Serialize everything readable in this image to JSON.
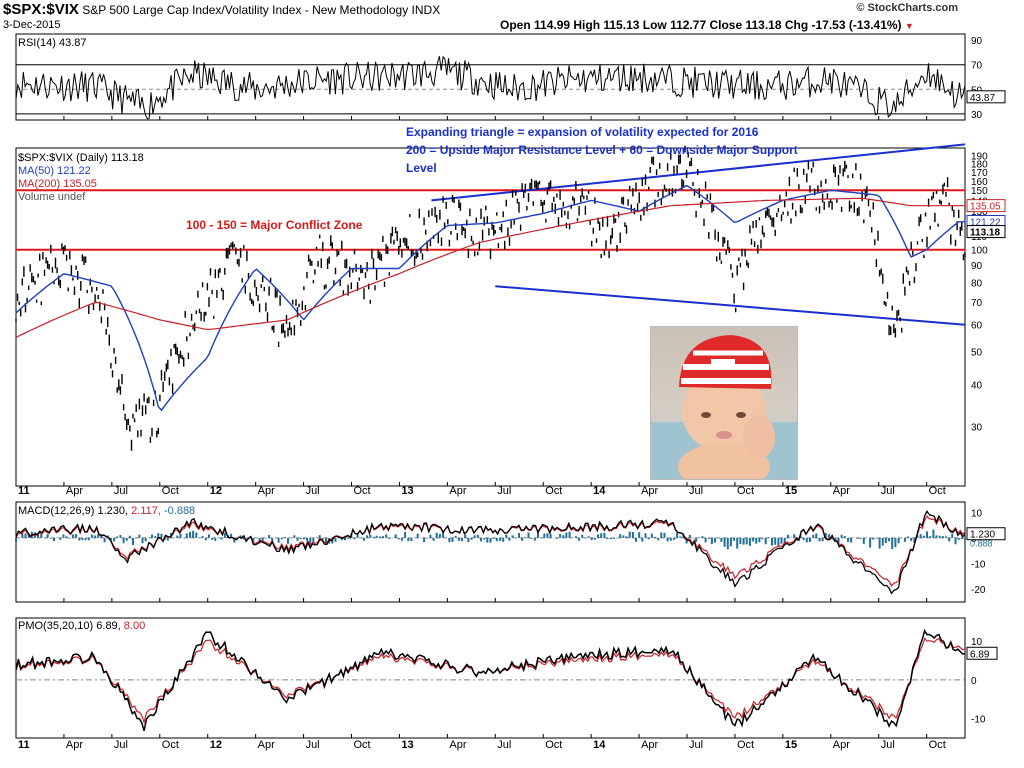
{
  "header": {
    "symbol": "$SPX:$VIX",
    "description": "S&P 500 Large Cap Index/Volatility Index - New Methodology",
    "exchange": "INDX",
    "date": "3-Dec-2015",
    "ohlc": "Open 114.99  High 115.13  Low 112.77  Close 113.18  Chg -17.53 (-13.41%)",
    "down_marker": "▼",
    "watermark": "© StockCharts.com"
  },
  "colors": {
    "price": "#000000",
    "ma50": "#1f3fbf",
    "ma200": "#c8202a",
    "support_lines": "#e0161b",
    "trend_lines": "#1a2fcf",
    "annotation_blue": "#1a2fcf",
    "annotation_red": "#d41a1a",
    "histogram": "#1f6f99"
  },
  "chart_data": [
    {
      "type": "line",
      "panel": "rsi",
      "legend": "RSI(14) 43.87",
      "value_label": "43.87",
      "yticks": [
        30,
        50,
        70,
        90
      ],
      "ylim": [
        25,
        95
      ],
      "reference_lines": [
        30,
        70
      ],
      "series": [
        {
          "name": "RSI(14)",
          "x": [
            "2011",
            "2011-06",
            "2011-09",
            "2011-12",
            "2012-04",
            "2012-08",
            "2012-12",
            "2013-04",
            "2013-08",
            "2013-12",
            "2014-04",
            "2014-08",
            "2014-12",
            "2015-04",
            "2015-08",
            "2015-10",
            "2015-12"
          ],
          "y": [
            55,
            52,
            35,
            62,
            50,
            58,
            60,
            65,
            50,
            58,
            60,
            55,
            52,
            58,
            35,
            65,
            44
          ]
        }
      ]
    },
    {
      "type": "line",
      "panel": "price",
      "scale": "log",
      "legend": [
        "$SPX:$VIX (Daily) 113.18",
        "MA(50) 121.22",
        "MA(200) 135.05",
        "Volume undef"
      ],
      "value_labels": {
        "price": "113.18",
        "ma50": "121.22",
        "ma200": "135.05"
      },
      "yticks": [
        30,
        40,
        50,
        60,
        70,
        80,
        90,
        100,
        110,
        120,
        130,
        140,
        150,
        160,
        170,
        180,
        190
      ],
      "ylim": [
        20,
        200
      ],
      "xticks": [
        "11",
        "Apr",
        "Jul",
        "Oct",
        "12",
        "Apr",
        "Jul",
        "Oct",
        "13",
        "Apr",
        "Jul",
        "Oct",
        "14",
        "Apr",
        "Jul",
        "Oct",
        "15",
        "Apr",
        "Jul",
        "Oct"
      ],
      "horizontal_lines": [
        100,
        150
      ],
      "trend_lines": [
        {
          "from": [
            "2013-03",
            140
          ],
          "to": [
            "2015-12",
            205
          ]
        },
        {
          "from": [
            "2013-07",
            78
          ],
          "to": [
            "2015-12",
            60
          ]
        }
      ],
      "annotations": [
        "Expanding triangle = expansion of volatility expected for 2016",
        "200 = Upside Major Resistance Level + 60 = Downside Major Support",
        "Level",
        "100 - 150 = Major Conflict Zone"
      ],
      "series": [
        {
          "name": "$SPX:$VIX",
          "x": [
            "2011-01",
            "2011-04",
            "2011-06",
            "2011-08",
            "2011-10",
            "2011-12",
            "2012-03",
            "2012-06",
            "2012-08",
            "2012-11",
            "2013-01",
            "2013-04",
            "2013-06",
            "2013-09",
            "2013-12",
            "2014-02",
            "2014-05",
            "2014-07",
            "2014-10",
            "2014-12",
            "2015-03",
            "2015-06",
            "2015-08",
            "2015-09",
            "2015-11",
            "2015-12"
          ],
          "y": [
            75,
            90,
            75,
            28,
            35,
            60,
            95,
            55,
            95,
            80,
            105,
            125,
            110,
            135,
            140,
            110,
            160,
            170,
            75,
            130,
            160,
            150,
            50,
            90,
            145,
            113
          ]
        },
        {
          "name": "MA(50)",
          "x": [
            "2011-01",
            "2011-04",
            "2011-07",
            "2011-10",
            "2012-01",
            "2012-04",
            "2012-07",
            "2012-10",
            "2013-01",
            "2013-04",
            "2013-07",
            "2013-10",
            "2014-01",
            "2014-04",
            "2014-07",
            "2014-10",
            "2015-01",
            "2015-04",
            "2015-07",
            "2015-09",
            "2015-10",
            "2015-12"
          ],
          "y": [
            65,
            85,
            78,
            33,
            48,
            88,
            62,
            88,
            88,
            118,
            120,
            128,
            140,
            130,
            155,
            120,
            140,
            150,
            145,
            95,
            100,
            121
          ]
        },
        {
          "name": "MA(200)",
          "x": [
            "2011-01",
            "2011-06",
            "2011-10",
            "2012-01",
            "2012-06",
            "2012-10",
            "2013-01",
            "2013-06",
            "2013-12",
            "2014-06",
            "2014-12",
            "2015-06",
            "2015-09",
            "2015-12"
          ],
          "y": [
            55,
            70,
            62,
            58,
            62,
            75,
            85,
            105,
            120,
            135,
            140,
            142,
            135,
            135
          ]
        }
      ]
    },
    {
      "type": "line",
      "panel": "macd",
      "legend": [
        "MACD(12,26,9)",
        "1.230,",
        "2.117,",
        "-0.888"
      ],
      "value_labels": [
        "1.230",
        "0.888"
      ],
      "yticks": [
        -20,
        -10,
        0,
        10
      ],
      "ylim": [
        -25,
        14
      ],
      "series": [
        {
          "name": "MACD(12,26,9)",
          "x": [
            "2011-01",
            "2011-06",
            "2011-08",
            "2011-12",
            "2012-06",
            "2012-12",
            "2013-06",
            "2013-12",
            "2014-06",
            "2014-10",
            "2015-03",
            "2015-08",
            "2015-10",
            "2015-12"
          ],
          "y": [
            2,
            4,
            -8,
            6,
            -5,
            5,
            3,
            4,
            6,
            -18,
            5,
            -22,
            11,
            1.23
          ]
        },
        {
          "name": "Signal",
          "x": [
            "2011-01",
            "2011-06",
            "2011-08",
            "2011-12",
            "2012-06",
            "2012-12",
            "2013-06",
            "2013-12",
            "2014-06",
            "2014-10",
            "2015-03",
            "2015-08",
            "2015-10",
            "2015-12"
          ],
          "y": [
            1.5,
            3.5,
            -7,
            5,
            -4,
            4.5,
            3,
            3.5,
            5.5,
            -15,
            4.5,
            -19,
            9,
            2.117
          ]
        }
      ]
    },
    {
      "type": "line",
      "panel": "pmo",
      "legend": [
        "PMO(35,20,10)",
        "6.89,",
        "8.00"
      ],
      "value_label": "6.89",
      "yticks": [
        -10,
        0,
        10
      ],
      "ylim": [
        -15,
        16
      ],
      "series": [
        {
          "name": "PMO(35,20,10)",
          "x": [
            "2011-01",
            "2011-06",
            "2011-09",
            "2012-01",
            "2012-06",
            "2012-12",
            "2013-06",
            "2013-12",
            "2014-06",
            "2014-10",
            "2015-03",
            "2015-08",
            "2015-10",
            "2015-12"
          ],
          "y": [
            4,
            6,
            -12,
            12,
            -5,
            7,
            2,
            6,
            8,
            -12,
            6,
            -12,
            13,
            6.89
          ]
        },
        {
          "name": "Signal",
          "x": [
            "2011-01",
            "2011-06",
            "2011-09",
            "2012-01",
            "2012-06",
            "2012-12",
            "2013-06",
            "2013-12",
            "2014-06",
            "2014-10",
            "2015-03",
            "2015-08",
            "2015-10",
            "2015-12"
          ],
          "y": [
            3.5,
            5.5,
            -10,
            10,
            -4,
            6,
            2,
            5,
            7,
            -10,
            5,
            -10,
            11,
            8.0
          ]
        }
      ]
    }
  ]
}
